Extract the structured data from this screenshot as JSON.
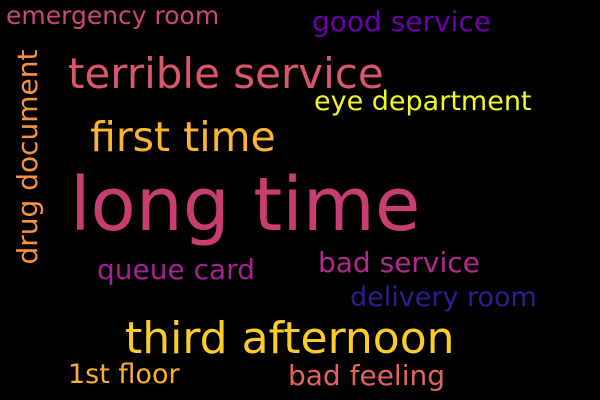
{
  "words": [
    {
      "text": "emergency room",
      "color": "#CC4778"
    },
    {
      "text": "good service",
      "color": "#6A00A8"
    },
    {
      "text": "terrible service",
      "color": "#D8576B"
    },
    {
      "text": "eye department",
      "color": "#F0F921"
    },
    {
      "text": "first time",
      "color": "#FDB42F"
    },
    {
      "text": "drug document",
      "color": "#F89441"
    },
    {
      "text": "long time",
      "color": "#C83E73"
    },
    {
      "text": "queue card",
      "color": "#A62098"
    },
    {
      "text": "bad service",
      "color": "#B12A90"
    },
    {
      "text": "delivery room",
      "color": "#2D1E8F"
    },
    {
      "text": "third afternoon",
      "color": "#FCCE25"
    },
    {
      "text": "1st floor",
      "color": "#FDAE32"
    },
    {
      "text": "bad feeling",
      "color": "#E16462"
    }
  ]
}
